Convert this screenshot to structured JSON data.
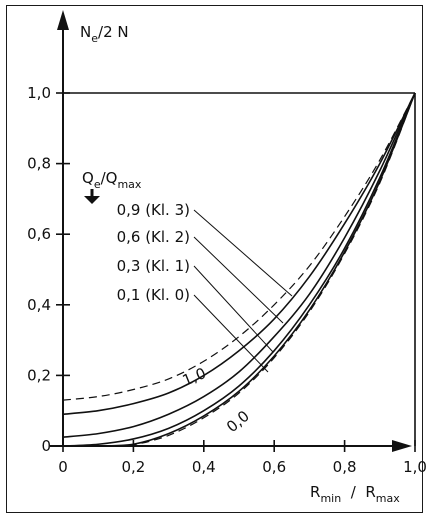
{
  "chart_data": {
    "type": "line",
    "ylabel": {
      "main": "N",
      "sub": "e",
      "rest": "/2 N"
    },
    "xlabel": {
      "a": "R",
      "a_sub": "min",
      "sep": "  /  ",
      "b": "R",
      "b_sub": "max"
    },
    "xlim": [
      0,
      1.0
    ],
    "ylim": [
      0,
      1.0
    ],
    "x_ticks": [
      "0",
      "0,2",
      "0,4",
      "0,6",
      "0,8",
      "1,0"
    ],
    "y_ticks": [
      "0",
      "0,2",
      "0,4",
      "0,6",
      "0,8",
      "1,0"
    ],
    "grid": false,
    "legend_header": {
      "a": "Q",
      "a_sub": "e",
      "sep": "/",
      "b": "Q",
      "b_sub": "max"
    },
    "series": [
      {
        "name": "1,0",
        "style": "dashed",
        "x": [
          0,
          0.1,
          0.2,
          0.3,
          0.4,
          0.5,
          0.6,
          0.7,
          0.8,
          0.9,
          1.0
        ],
        "y": [
          0.13,
          0.14,
          0.16,
          0.19,
          0.24,
          0.31,
          0.4,
          0.51,
          0.65,
          0.81,
          1.0
        ]
      },
      {
        "name": "0,9 (Kl. 3)",
        "style": "solid",
        "x": [
          0,
          0.1,
          0.2,
          0.3,
          0.4,
          0.5,
          0.6,
          0.7,
          0.8,
          0.9,
          1.0
        ],
        "y": [
          0.09,
          0.1,
          0.12,
          0.15,
          0.2,
          0.27,
          0.36,
          0.48,
          0.63,
          0.8,
          1.0
        ]
      },
      {
        "name": "0,6 (Kl. 2)",
        "style": "solid",
        "x": [
          0,
          0.1,
          0.2,
          0.3,
          0.4,
          0.5,
          0.6,
          0.7,
          0.8,
          0.9,
          1.0
        ],
        "y": [
          0.025,
          0.035,
          0.055,
          0.09,
          0.14,
          0.21,
          0.31,
          0.43,
          0.59,
          0.78,
          1.0
        ]
      },
      {
        "name": "0,3 (Kl. 1)",
        "style": "solid",
        "x": [
          0,
          0.1,
          0.2,
          0.3,
          0.4,
          0.5,
          0.6,
          0.7,
          0.8,
          0.9,
          1.0
        ],
        "y": [
          0.0,
          0.005,
          0.02,
          0.05,
          0.1,
          0.17,
          0.27,
          0.4,
          0.56,
          0.76,
          1.0
        ]
      },
      {
        "name": "0,1 (Kl. 0)",
        "style": "solid",
        "x": [
          0.1,
          0.2,
          0.3,
          0.4,
          0.5,
          0.6,
          0.7,
          0.8,
          0.9,
          1.0
        ],
        "y": [
          0.0,
          0.005,
          0.035,
          0.085,
          0.155,
          0.255,
          0.385,
          0.55,
          0.75,
          1.0
        ]
      },
      {
        "name": "0,0",
        "style": "dashed",
        "x": [
          0.15,
          0.2,
          0.3,
          0.4,
          0.5,
          0.6,
          0.7,
          0.8,
          0.9,
          1.0
        ],
        "y": [
          0.0,
          0.003,
          0.03,
          0.08,
          0.15,
          0.25,
          0.38,
          0.545,
          0.745,
          1.0
        ]
      }
    ],
    "annotations": [
      {
        "text": "0,9 (Kl. 3)",
        "points_to": 0.66
      },
      {
        "text": "0,6 (Kl. 2)",
        "points_to": 0.62
      },
      {
        "text": "0,3 (Kl. 1)",
        "points_to": 0.61
      },
      {
        "text": "0,1 (Kl. 0)",
        "points_to": 0.6
      },
      {
        "text": "1,0"
      },
      {
        "text": "0,0"
      }
    ]
  }
}
